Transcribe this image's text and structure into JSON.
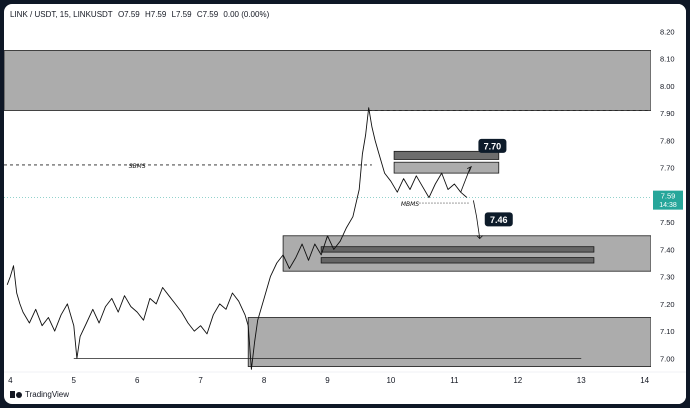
{
  "header": {
    "symbol": "LINK / USDT, 15, LINKUSDT",
    "open": "O7.59",
    "high": "H7.59",
    "low": "L7.59",
    "close": "C7.59",
    "change": "0.00 (0.00%)"
  },
  "price_label": {
    "value": "7.59",
    "countdown": "14:38"
  },
  "branding": {
    "name": "TradingView",
    "logo_icon": "tradingview-logo-icon"
  },
  "colors": {
    "zone_fill": "#9e9e9e",
    "dark_zone_fill": "#5d5d5d",
    "price_line": "#26a69a",
    "badge": "#0d1b2a"
  },
  "chart_data": {
    "type": "line",
    "grid": false,
    "x_ticks": [
      4,
      5,
      6,
      7,
      8,
      9,
      10,
      11,
      12,
      13,
      14
    ],
    "xlim": [
      3.9,
      14.1
    ],
    "y_ticks": [
      "7.00",
      "7.10",
      "7.20",
      "7.30",
      "7.40",
      "7.50",
      "7.60",
      "7.70",
      "7.80",
      "7.90",
      "8.00",
      "8.10",
      "8.20"
    ],
    "ylim": [
      6.95,
      8.22
    ],
    "series": [
      {
        "points": [
          [
            3.95,
            7.27
          ],
          [
            4.0,
            7.3
          ],
          [
            4.05,
            7.34
          ],
          [
            4.1,
            7.24
          ],
          [
            4.15,
            7.2
          ],
          [
            4.2,
            7.17
          ],
          [
            4.3,
            7.13
          ],
          [
            4.4,
            7.18
          ],
          [
            4.5,
            7.12
          ],
          [
            4.6,
            7.15
          ],
          [
            4.7,
            7.1
          ],
          [
            4.8,
            7.16
          ],
          [
            4.9,
            7.2
          ],
          [
            5.0,
            7.12
          ],
          [
            5.05,
            7.0
          ],
          [
            5.1,
            7.08
          ],
          [
            5.2,
            7.13
          ],
          [
            5.3,
            7.18
          ],
          [
            5.4,
            7.13
          ],
          [
            5.5,
            7.19
          ],
          [
            5.6,
            7.22
          ],
          [
            5.7,
            7.17
          ],
          [
            5.8,
            7.23
          ],
          [
            5.9,
            7.19
          ],
          [
            6.0,
            7.17
          ],
          [
            6.1,
            7.14
          ],
          [
            6.2,
            7.22
          ],
          [
            6.3,
            7.2
          ],
          [
            6.4,
            7.26
          ],
          [
            6.5,
            7.23
          ],
          [
            6.6,
            7.2
          ],
          [
            6.7,
            7.17
          ],
          [
            6.8,
            7.13
          ],
          [
            6.9,
            7.1
          ],
          [
            7.0,
            7.12
          ],
          [
            7.1,
            7.09
          ],
          [
            7.2,
            7.16
          ],
          [
            7.3,
            7.2
          ],
          [
            7.4,
            7.18
          ],
          [
            7.5,
            7.24
          ],
          [
            7.6,
            7.21
          ],
          [
            7.7,
            7.16
          ],
          [
            7.75,
            7.12
          ],
          [
            7.8,
            6.96
          ],
          [
            7.85,
            7.06
          ],
          [
            7.9,
            7.14
          ],
          [
            8.0,
            7.22
          ],
          [
            8.1,
            7.3
          ],
          [
            8.2,
            7.35
          ],
          [
            8.3,
            7.38
          ],
          [
            8.4,
            7.33
          ],
          [
            8.5,
            7.37
          ],
          [
            8.6,
            7.42
          ],
          [
            8.7,
            7.36
          ],
          [
            8.8,
            7.42
          ],
          [
            8.9,
            7.38
          ],
          [
            9.0,
            7.45
          ],
          [
            9.1,
            7.4
          ],
          [
            9.2,
            7.43
          ],
          [
            9.3,
            7.48
          ],
          [
            9.4,
            7.52
          ],
          [
            9.5,
            7.62
          ],
          [
            9.55,
            7.75
          ],
          [
            9.6,
            7.82
          ],
          [
            9.65,
            7.92
          ],
          [
            9.7,
            7.85
          ],
          [
            9.75,
            7.8
          ],
          [
            9.8,
            7.76
          ],
          [
            9.9,
            7.68
          ],
          [
            10.0,
            7.65
          ],
          [
            10.1,
            7.61
          ],
          [
            10.2,
            7.66
          ],
          [
            10.3,
            7.62
          ],
          [
            10.4,
            7.67
          ],
          [
            10.5,
            7.63
          ],
          [
            10.6,
            7.59
          ],
          [
            10.7,
            7.64
          ],
          [
            10.8,
            7.68
          ],
          [
            10.9,
            7.62
          ],
          [
            11.0,
            7.64
          ],
          [
            11.1,
            7.61
          ],
          [
            11.2,
            7.59
          ]
        ]
      }
    ],
    "zones": [
      {
        "x": [
          3.9,
          14.1
        ],
        "y": [
          7.91,
          8.13
        ],
        "kind": "light"
      },
      {
        "x": [
          7.75,
          14.1
        ],
        "y": [
          6.97,
          7.15
        ],
        "kind": "light"
      },
      {
        "x": [
          8.3,
          14.1
        ],
        "y": [
          7.32,
          7.45
        ],
        "kind": "light"
      },
      {
        "x": [
          8.9,
          13.2
        ],
        "y": [
          7.39,
          7.41
        ],
        "kind": "dark"
      },
      {
        "x": [
          8.9,
          13.2
        ],
        "y": [
          7.35,
          7.37
        ],
        "kind": "dark"
      },
      {
        "x": [
          10.05,
          11.7
        ],
        "y": [
          7.73,
          7.76
        ],
        "kind": "dark"
      },
      {
        "x": [
          10.05,
          11.7
        ],
        "y": [
          7.68,
          7.72
        ],
        "kind": "light"
      }
    ],
    "levels": [
      {
        "y": 7.71,
        "x": [
          3.9,
          9.7
        ],
        "style": "dashed",
        "label": "SBMS",
        "label_x": 6.0
      },
      {
        "y": 7.91,
        "x": [
          9.65,
          14.1
        ],
        "style": "dashed"
      },
      {
        "y": 7.57,
        "x": [
          10.45,
          11.25
        ],
        "style": "dotted",
        "label": "MBMS",
        "label_x": 10.3
      },
      {
        "y": 7.0,
        "x": [
          5.0,
          13.0
        ],
        "style": "solid"
      }
    ],
    "projection": {
      "up": [
        [
          11.1,
          7.61
        ],
        [
          11.25,
          7.7
        ]
      ],
      "down": [
        [
          11.3,
          7.58
        ],
        [
          11.35,
          7.52
        ],
        [
          11.4,
          7.44
        ]
      ]
    },
    "annotations": [
      {
        "text": "7.70",
        "x": 11.6,
        "y": 7.78
      },
      {
        "text": "7.46",
        "x": 11.7,
        "y": 7.51
      }
    ],
    "last_price": 7.59
  }
}
